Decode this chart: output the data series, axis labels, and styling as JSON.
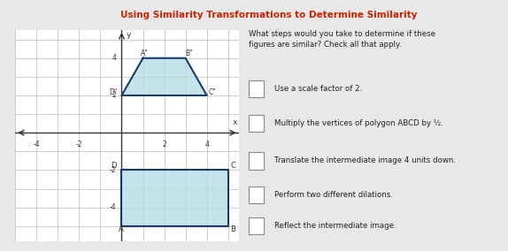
{
  "title": "Using Similarity Transformations to Determine Similarity",
  "bg_color": "#e8e8e8",
  "graph_bg": "#ffffff",
  "grid_color": "#bbbbbb",
  "axis_color": "#333333",
  "poly_large_vertices": [
    [
      0,
      -5
    ],
    [
      5,
      -5
    ],
    [
      5,
      -2
    ],
    [
      0,
      -2
    ]
  ],
  "poly_large_fill": "#b8dce8",
  "poly_large_edge": "#1a3a6b",
  "poly_small_vertices": [
    [
      1,
      4
    ],
    [
      3,
      4
    ],
    [
      4,
      2
    ],
    [
      0,
      2
    ]
  ],
  "poly_small_fill": "#b8dce8",
  "poly_small_edge": "#1a3a6b",
  "xlim": [
    -5,
    5.5
  ],
  "ylim": [
    -5.8,
    5.5
  ],
  "xticks": [
    -4,
    -2,
    2,
    4
  ],
  "yticks": [
    -4,
    -2,
    2,
    4
  ],
  "question_text": "What steps would you take to determine if these\nfigures are similar? Check all that apply.",
  "options": [
    "Use a scale factor of 2.",
    "Multiply the vertices of polygon ABCD by ½.",
    "Translate the intermediate image 4 units down.",
    "Perform two different dilations.",
    "Reflect the intermediate image."
  ],
  "text_color": "#222222",
  "header_color": "#cc2200",
  "header_text": "Using Similarity Transformations to Determine Similarity",
  "linewidth": 1.5
}
